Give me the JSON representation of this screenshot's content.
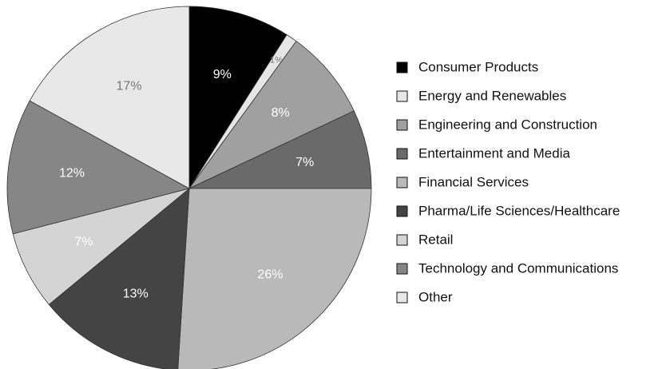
{
  "chart_data": {
    "type": "pie",
    "categories": [
      "Consumer Products",
      "Energy and Renewables",
      "Engineering and Construction",
      "Entertainment and Media",
      "Financial Services",
      "Pharma/Life Sciences/Healthcare",
      "Retail",
      "Technology and Communications",
      "Other"
    ],
    "values": [
      9,
      1,
      8,
      7,
      26,
      13,
      7,
      12,
      17
    ],
    "value_labels": [
      "9%",
      "1%",
      "8%",
      "7%",
      "26%",
      "13%",
      "7%",
      "12%",
      "17%"
    ],
    "colors": [
      "#000000",
      "#e6e6e6",
      "#a0a0a0",
      "#6a6a6a",
      "#b9b9b9",
      "#444444",
      "#d4d4d4",
      "#868686",
      "#e8e8e8"
    ],
    "legend": "right"
  }
}
